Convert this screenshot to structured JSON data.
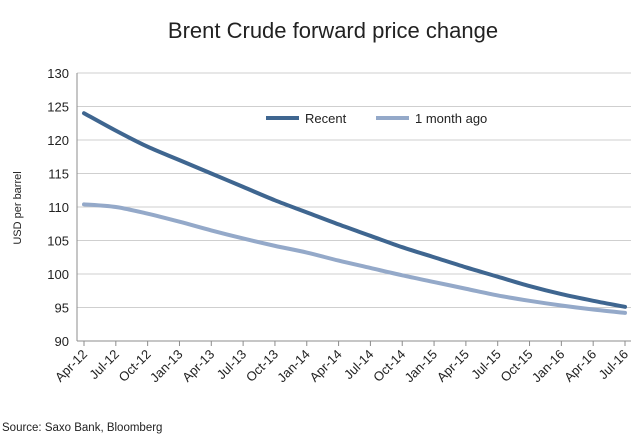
{
  "chart_data": {
    "type": "line",
    "title": "Brent Crude forward price change",
    "xlabel": "",
    "ylabel": "USD per barrel",
    "ylim": [
      90,
      130
    ],
    "yticks": [
      90,
      95,
      100,
      105,
      110,
      115,
      120,
      125,
      130
    ],
    "grid": "horizontal",
    "legend_position": "top-right",
    "categories": [
      "Apr-12",
      "Jul-12",
      "Oct-12",
      "Jan-13",
      "Apr-13",
      "Jul-13",
      "Oct-13",
      "Jan-14",
      "Apr-14",
      "Jul-14",
      "Oct-14",
      "Jan-15",
      "Apr-15",
      "Jul-15",
      "Oct-15",
      "Jan-16",
      "Apr-16",
      "Jul-16"
    ],
    "series": [
      {
        "name": "Recent",
        "color": "#3f6690",
        "values": [
          124.0,
          121.4,
          119.0,
          117.0,
          115.0,
          113.0,
          111.0,
          109.2,
          107.4,
          105.7,
          104.0,
          102.5,
          101.0,
          99.6,
          98.2,
          97.0,
          96.0,
          95.1
        ]
      },
      {
        "name": "1 month ago",
        "color": "#94a9c9",
        "values": [
          110.4,
          110.0,
          109.0,
          107.8,
          106.5,
          105.3,
          104.2,
          103.2,
          102.0,
          100.9,
          99.8,
          98.8,
          97.8,
          96.8,
          96.0,
          95.3,
          94.7,
          94.2
        ]
      }
    ],
    "source": "Source: Saxo Bank, Bloomberg"
  }
}
